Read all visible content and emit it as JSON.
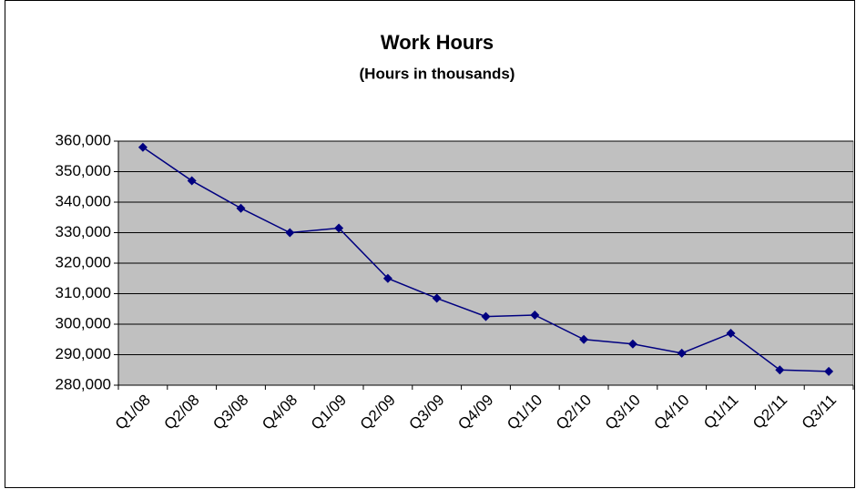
{
  "chart_data": {
    "type": "line",
    "title": "Work Hours",
    "subtitle": "(Hours in thousands)",
    "categories": [
      "Q1/08",
      "Q2/08",
      "Q3/08",
      "Q4/08",
      "Q1/09",
      "Q2/09",
      "Q3/09",
      "Q4/09",
      "Q1/10",
      "Q2/10",
      "Q3/10",
      "Q4/10",
      "Q1/11",
      "Q2/11",
      "Q3/11"
    ],
    "series": [
      {
        "name": "Work Hours",
        "color": "#000080",
        "values": [
          358000,
          347000,
          338000,
          330000,
          331500,
          315000,
          308500,
          302500,
          303000,
          295000,
          293500,
          290500,
          297000,
          285000,
          284500
        ]
      }
    ],
    "ylim": [
      280000,
      360000
    ],
    "yticks": [
      {
        "value": 280000,
        "label": "280,000"
      },
      {
        "value": 290000,
        "label": "290,000"
      },
      {
        "value": 300000,
        "label": "300,000"
      },
      {
        "value": 310000,
        "label": "310,000"
      },
      {
        "value": 320000,
        "label": "320,000"
      },
      {
        "value": 330000,
        "label": "330,000"
      },
      {
        "value": 340000,
        "label": "340,000"
      },
      {
        "value": 350000,
        "label": "350,000"
      },
      {
        "value": 360000,
        "label": "360,000"
      }
    ],
    "grid": true,
    "plot_background": "#c0c0c0"
  }
}
